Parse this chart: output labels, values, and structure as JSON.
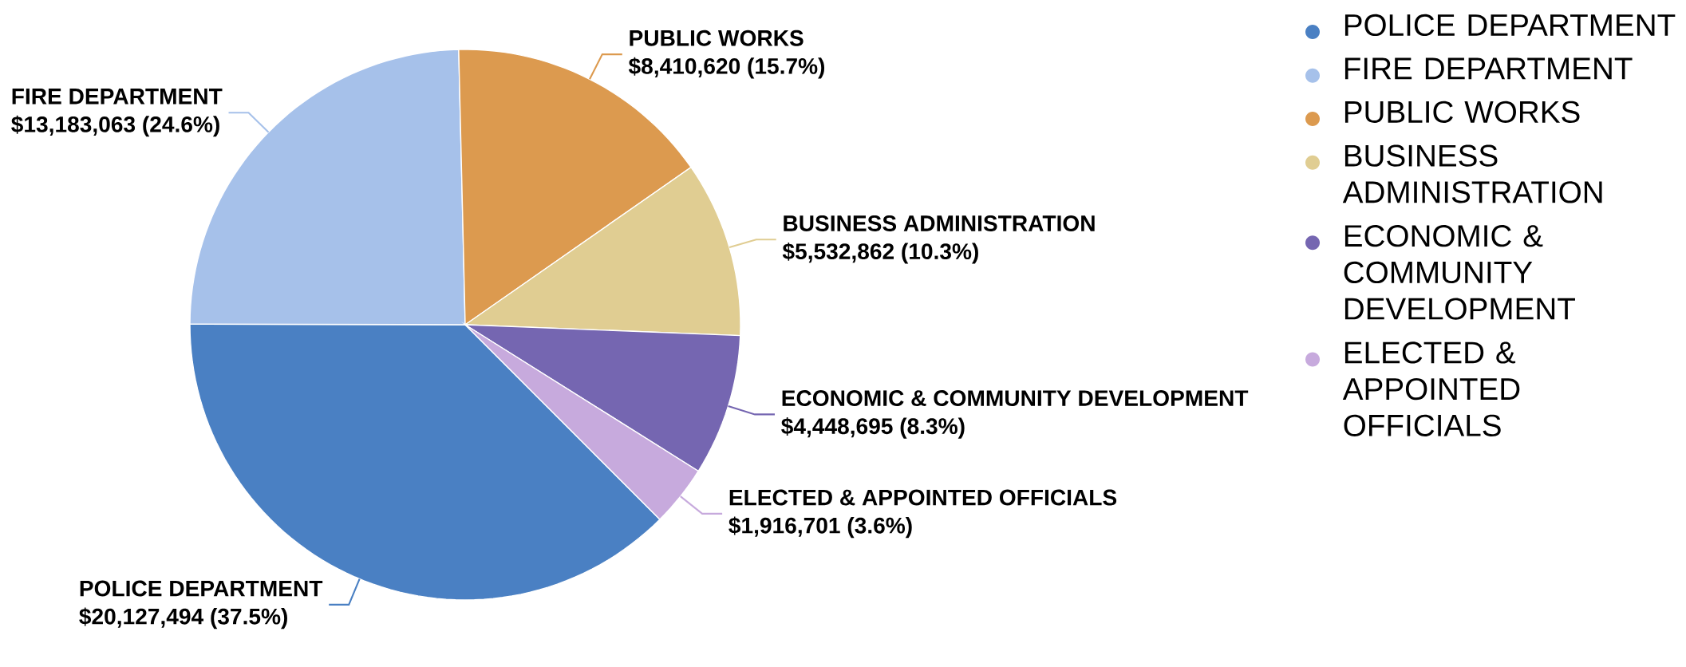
{
  "chart_data": {
    "type": "pie",
    "categories": [
      "POLICE DEPARTMENT",
      "FIRE DEPARTMENT",
      "PUBLIC WORKS",
      "BUSINESS ADMINISTRATION",
      "ECONOMIC & COMMUNITY DEVELOPMENT",
      "ELECTED & APPOINTED OFFICIALS"
    ],
    "values": [
      20127494,
      13183063,
      8410620,
      5532862,
      4448695,
      1916701
    ],
    "colors": [
      "#4a80c3",
      "#a6c1ea",
      "#dc9a4f",
      "#e0cd92",
      "#7566b1",
      "#c7aadd"
    ],
    "value_labels": [
      "$20,127,494 (37.5%)",
      "$13,183,063 (24.6%)",
      "$8,410,620 (15.7%)",
      "$5,532,862 (10.3%)",
      "$4,448,695 (8.3%)",
      "$1,916,701 (3.6%)"
    ],
    "legend": "top right"
  }
}
